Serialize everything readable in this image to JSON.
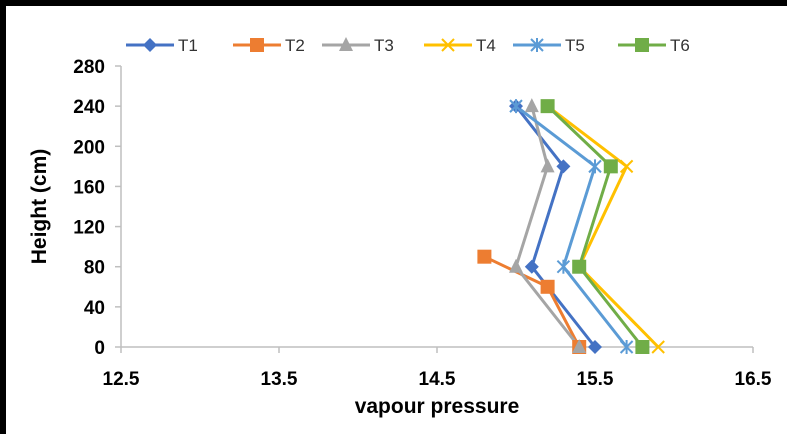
{
  "chart_data": {
    "type": "line",
    "title": "",
    "xlabel": "vapour pressure",
    "ylabel": "Height (cm)",
    "xlim": [
      12.5,
      16.5
    ],
    "ylim": [
      0,
      280
    ],
    "x_ticks": [
      "12.5",
      "13.5",
      "14.5",
      "15.5",
      "16.5"
    ],
    "y_ticks": [
      "0",
      "40",
      "80",
      "120",
      "160",
      "200",
      "240",
      "280"
    ],
    "x_tick_values": [
      12.5,
      13.5,
      14.5,
      15.5,
      16.5
    ],
    "y_tick_values": [
      0,
      40,
      80,
      120,
      160,
      200,
      240,
      280
    ],
    "grid": false,
    "legend_position": "top",
    "series": [
      {
        "name": "T1",
        "color": "#4472C4",
        "marker": "diamond",
        "points": [
          [
            15.5,
            0
          ],
          [
            15.1,
            80
          ],
          [
            15.3,
            180
          ],
          [
            15.0,
            240
          ]
        ]
      },
      {
        "name": "T2",
        "color": "#ED7D31",
        "marker": "square",
        "points": [
          [
            15.4,
            0
          ],
          [
            15.2,
            60
          ],
          [
            14.8,
            90
          ]
        ]
      },
      {
        "name": "T3",
        "color": "#A5A5A5",
        "marker": "triangle",
        "points": [
          [
            15.4,
            0
          ],
          [
            15.0,
            80
          ],
          [
            15.2,
            180
          ],
          [
            15.1,
            240
          ]
        ]
      },
      {
        "name": "T4",
        "color": "#FFC000",
        "marker": "x",
        "points": [
          [
            15.9,
            0
          ],
          [
            15.4,
            80
          ],
          [
            15.7,
            180
          ],
          [
            15.2,
            240
          ]
        ]
      },
      {
        "name": "T5",
        "color": "#5B9BD5",
        "marker": "star",
        "points": [
          [
            15.7,
            0
          ],
          [
            15.3,
            80
          ],
          [
            15.5,
            180
          ],
          [
            15.0,
            240
          ]
        ]
      },
      {
        "name": "T6",
        "color": "#70AD47",
        "marker": "square",
        "points": [
          [
            15.8,
            0
          ],
          [
            15.4,
            80
          ],
          [
            15.6,
            180
          ],
          [
            15.2,
            240
          ]
        ]
      }
    ]
  }
}
